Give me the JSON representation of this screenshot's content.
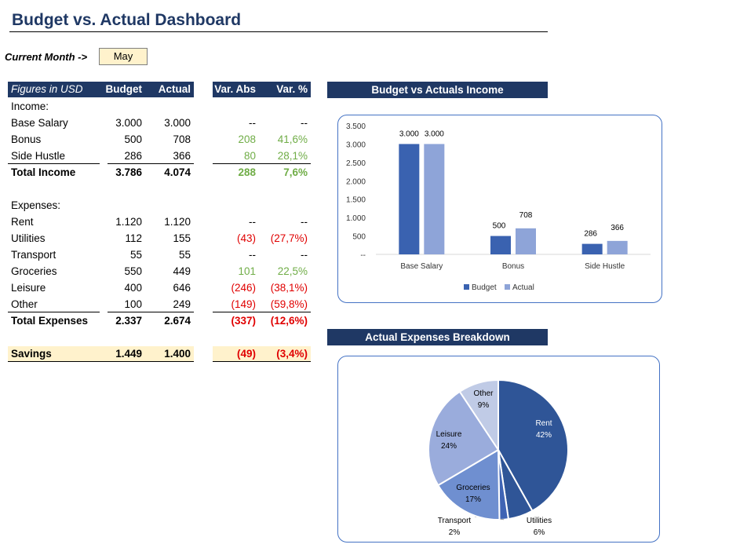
{
  "title": "Budget vs. Actual Dashboard",
  "current_month": {
    "label": "Current Month ->",
    "value": "May"
  },
  "table": {
    "headers": {
      "label": "Figures in USD",
      "budget": "Budget",
      "actual": "Actual",
      "var_abs": "Var. Abs",
      "var_pct": "Var. %"
    },
    "income_label": "Income:",
    "income_rows": [
      {
        "label": "Base Salary",
        "budget": "3.000",
        "actual": "3.000",
        "var_abs": "--",
        "var_pct": "--"
      },
      {
        "label": "Bonus",
        "budget": "500",
        "actual": "708",
        "var_abs": "208",
        "var_pct": "41,6%"
      },
      {
        "label": "Side Hustle",
        "budget": "286",
        "actual": "366",
        "var_abs": "80",
        "var_pct": "28,1%"
      }
    ],
    "total_income": {
      "label": "Total Income",
      "budget": "3.786",
      "actual": "4.074",
      "var_abs": "288",
      "var_pct": "7,6%"
    },
    "expenses_label": "Expenses:",
    "expense_rows": [
      {
        "label": "Rent",
        "budget": "1.120",
        "actual": "1.120",
        "var_abs": "--",
        "var_pct": "--"
      },
      {
        "label": "Utilities",
        "budget": "112",
        "actual": "155",
        "var_abs": "(43)",
        "var_pct": "(27,7%)"
      },
      {
        "label": "Transport",
        "budget": "55",
        "actual": "55",
        "var_abs": "--",
        "var_pct": "--"
      },
      {
        "label": "Groceries",
        "budget": "550",
        "actual": "449",
        "var_abs": "101",
        "var_pct": "22,5%"
      },
      {
        "label": "Leisure",
        "budget": "400",
        "actual": "646",
        "var_abs": "(246)",
        "var_pct": "(38,1%)"
      },
      {
        "label": "Other",
        "budget": "100",
        "actual": "249",
        "var_abs": "(149)",
        "var_pct": "(59,8%)"
      }
    ],
    "total_expenses": {
      "label": "Total Expenses",
      "budget": "2.337",
      "actual": "2.674",
      "var_abs": "(337)",
      "var_pct": "(12,6%)"
    },
    "savings": {
      "label": "Savings",
      "budget": "1.449",
      "actual": "1.400",
      "var_abs": "(49)",
      "var_pct": "(3,4%)"
    }
  },
  "colors": {
    "header_bg": "#1f3864",
    "budget_bar": "#3a62b0",
    "actual_bar": "#8ea4d8",
    "positive": "#70ad47",
    "negative": "#e00000",
    "highlight": "#fff2cc"
  },
  "chart_data": [
    {
      "type": "bar",
      "title": "Budget vs Actuals Income",
      "categories": [
        "Base Salary",
        "Bonus",
        "Side Hustle"
      ],
      "series": [
        {
          "name": "Budget",
          "values": [
            3000,
            500,
            286
          ],
          "labels": [
            "3.000",
            "500",
            "286"
          ]
        },
        {
          "name": "Actual",
          "values": [
            3000,
            708,
            366
          ],
          "labels": [
            "3.000",
            "708",
            "366"
          ]
        }
      ],
      "ylim": [
        0,
        3500
      ],
      "yticks": [
        {
          "value": 0,
          "label": "--"
        },
        {
          "value": 500,
          "label": "500"
        },
        {
          "value": 1000,
          "label": "1.000"
        },
        {
          "value": 1500,
          "label": "1.500"
        },
        {
          "value": 2000,
          "label": "2.000"
        },
        {
          "value": 2500,
          "label": "2.500"
        },
        {
          "value": 3000,
          "label": "3.000"
        },
        {
          "value": 3500,
          "label": "3.500"
        }
      ],
      "legend": "bottom"
    },
    {
      "type": "pie",
      "title": "Actual Expenses Breakdown",
      "slices": [
        {
          "label": "Rent",
          "pct": "42%",
          "value": 1120,
          "color": "#2f5597"
        },
        {
          "label": "Utilities",
          "pct": "6%",
          "value": 155,
          "color": "#2f5597"
        },
        {
          "label": "Transport",
          "pct": "2%",
          "value": 55,
          "color": "#3f64b4"
        },
        {
          "label": "Groceries",
          "pct": "17%",
          "value": 449,
          "color": "#6f8fd0"
        },
        {
          "label": "Leisure",
          "pct": "24%",
          "value": 646,
          "color": "#9aacdc"
        },
        {
          "label": "Other",
          "pct": "9%",
          "value": 249,
          "color": "#c0cbe6"
        }
      ]
    }
  ]
}
